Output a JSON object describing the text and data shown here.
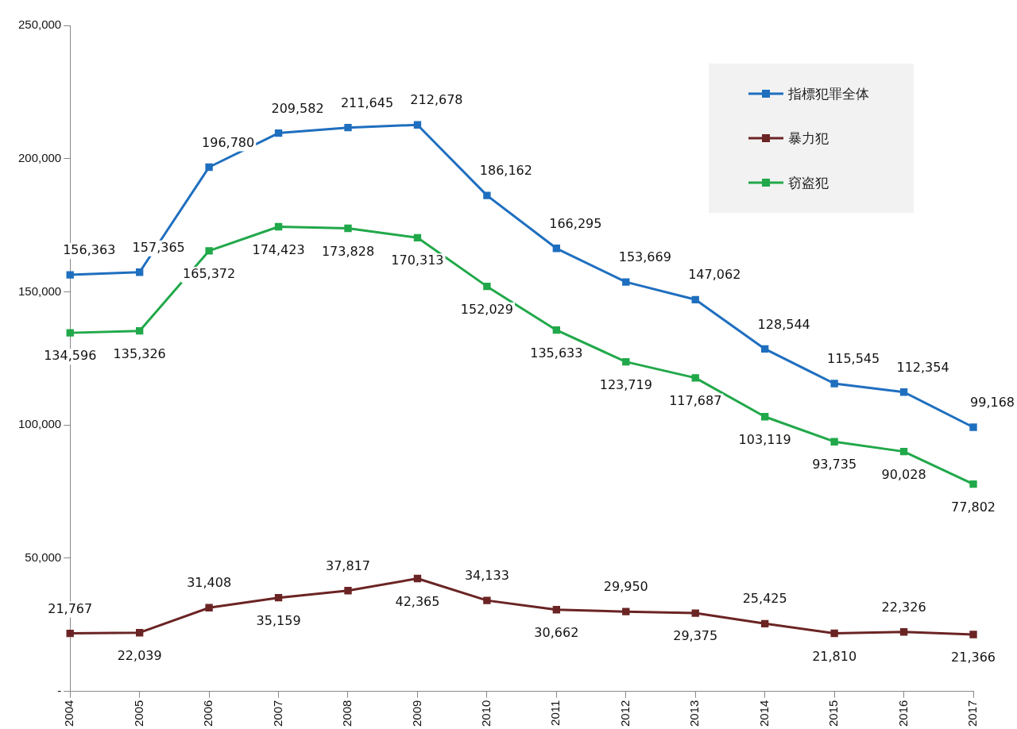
{
  "chart_data": {
    "type": "line",
    "categories": [
      "2004",
      "2005",
      "2006",
      "2007",
      "2008",
      "2009",
      "2010",
      "2011",
      "2012",
      "2013",
      "2014",
      "2015",
      "2016",
      "2017"
    ],
    "series": [
      {
        "name": "指標犯罪全体",
        "color": "#1f6fbf",
        "values": [
          156363,
          157365,
          196780,
          209582,
          211645,
          212678,
          186162,
          166295,
          153669,
          147062,
          128544,
          115545,
          112354,
          99168
        ],
        "value_labels": [
          "156,363",
          "157,365",
          "196,780",
          "209,582",
          "211,645",
          "212,678",
          "186,162",
          "166,295",
          "153,669",
          "147,062",
          "128,544",
          "115,545",
          "112,354",
          "99,168"
        ]
      },
      {
        "name": "暴力犯",
        "color": "#6b2424",
        "values": [
          21767,
          22039,
          31408,
          35159,
          37817,
          42365,
          34133,
          30662,
          29950,
          29375,
          25425,
          21810,
          22326,
          21366
        ],
        "value_labels": [
          "21,767",
          "22,039",
          "31,408",
          "35,159",
          "37,817",
          "42,365",
          "34,133",
          "30,662",
          "29,950",
          "29,375",
          "25,425",
          "21,810",
          "22,326",
          "21,366"
        ]
      },
      {
        "name": "窃盗犯",
        "color": "#21a84a",
        "values": [
          134596,
          135326,
          165372,
          174423,
          173828,
          170313,
          152029,
          135633,
          123719,
          117687,
          103119,
          93735,
          90028,
          77802
        ],
        "value_labels": [
          "134,596",
          "135,326",
          "165,372",
          "174,423",
          "173,828",
          "170,313",
          "152,029",
          "135,633",
          "123,719",
          "117,687",
          "103,119",
          "93,735",
          "90,028",
          "77,802"
        ]
      }
    ],
    "ylim": [
      0,
      250000
    ],
    "yticks": [
      {
        "value": 0,
        "label": "-"
      },
      {
        "value": 50000,
        "label": "50,000"
      },
      {
        "value": 100000,
        "label": "100,000"
      },
      {
        "value": 150000,
        "label": "150,000"
      },
      {
        "value": 200000,
        "label": "200,000"
      },
      {
        "value": 250000,
        "label": "250,000"
      }
    ],
    "grid": false,
    "legend": "top right",
    "marker": "square",
    "line_style": "solid"
  }
}
